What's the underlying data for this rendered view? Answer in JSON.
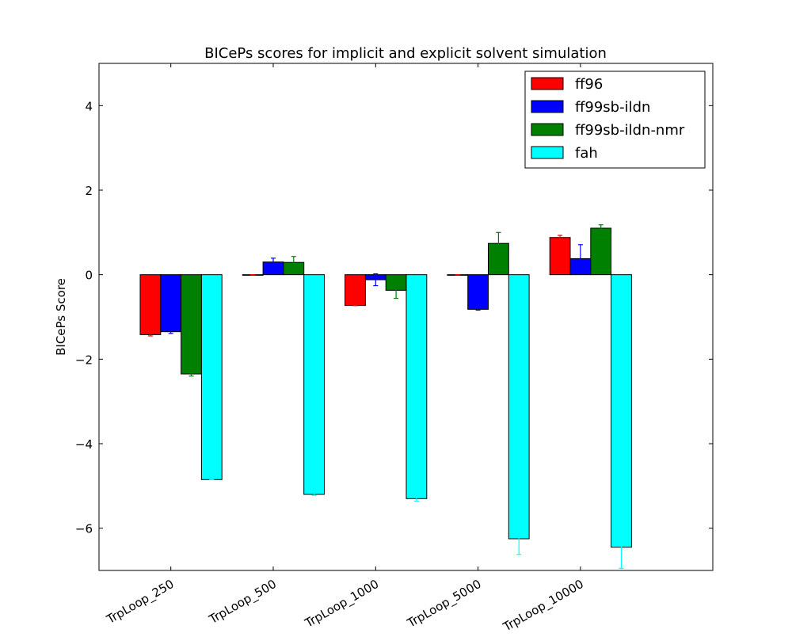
{
  "chart_data": {
    "type": "bar",
    "title": "BICePs scores for implicit and explicit solvent simulation",
    "xlabel": "",
    "ylabel": "BICePs Score",
    "ylim": [
      -7,
      5
    ],
    "yticks": [
      -6,
      -4,
      -2,
      0,
      2,
      4
    ],
    "ytick_labels": [
      "−6",
      "−4",
      "−2",
      "0",
      "2",
      "4"
    ],
    "categories": [
      "TrpLoop_250",
      "TrpLoop_500",
      "TrpLoop_1000",
      "TrpLoop_5000",
      "TrpLoop_10000"
    ],
    "grid": false,
    "legend_position": "upper right",
    "series": [
      {
        "name": "ff96",
        "color": "#ff0000",
        "values": [
          -1.42,
          0.0,
          -0.73,
          0.0,
          0.88
        ],
        "errors": [
          0.03,
          0.0,
          0.0,
          0.0,
          0.05
        ]
      },
      {
        "name": "ff99sb-ildn",
        "color": "#0000ff",
        "values": [
          -1.35,
          0.3,
          -0.12,
          -0.82,
          0.38
        ],
        "errors": [
          0.04,
          0.09,
          0.14,
          0.02,
          0.33
        ]
      },
      {
        "name": "ff99sb-ildn-nmr",
        "color": "#008000",
        "values": [
          -2.35,
          0.29,
          -0.37,
          0.74,
          1.1
        ],
        "errors": [
          0.05,
          0.14,
          0.19,
          0.26,
          0.08
        ]
      },
      {
        "name": "fah",
        "color": "#00ffff",
        "values": [
          -4.85,
          -5.2,
          -5.3,
          -6.25,
          -6.45
        ],
        "errors": [
          0.0,
          0.02,
          0.06,
          0.37,
          0.5
        ]
      }
    ]
  }
}
